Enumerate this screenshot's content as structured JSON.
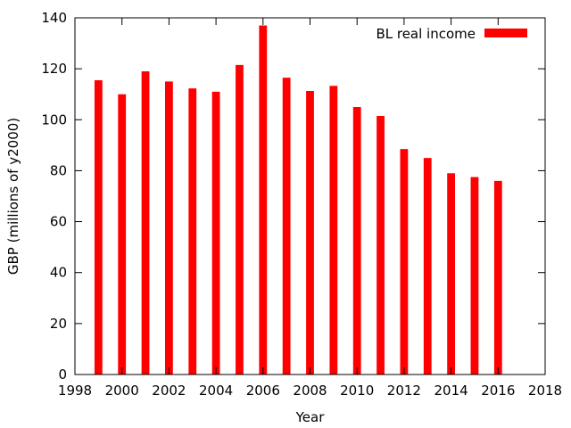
{
  "chart_data": {
    "type": "bar",
    "title": "",
    "xlabel": "Year",
    "ylabel": "GBP (millions of y2000)",
    "xlim": [
      1998,
      2018
    ],
    "ylim": [
      0,
      140
    ],
    "x_ticks": [
      1998,
      2000,
      2002,
      2004,
      2006,
      2008,
      2010,
      2012,
      2014,
      2016,
      2018
    ],
    "y_ticks": [
      0,
      20,
      40,
      60,
      80,
      100,
      120,
      140
    ],
    "grid": false,
    "legend": {
      "position": "top-right"
    },
    "series": [
      {
        "name": "BL real income",
        "color": "#ff0000",
        "x": [
          1999,
          2000,
          2001,
          2002,
          2003,
          2004,
          2005,
          2006,
          2007,
          2008,
          2009,
          2010,
          2011,
          2012,
          2013,
          2014,
          2015,
          2016
        ],
        "values": [
          115.5,
          110,
          119,
          115,
          112.3,
          111,
          121.5,
          137,
          116.5,
          111.3,
          113.3,
          105,
          101.5,
          88.5,
          85,
          79,
          77.5,
          76
        ]
      }
    ]
  }
}
